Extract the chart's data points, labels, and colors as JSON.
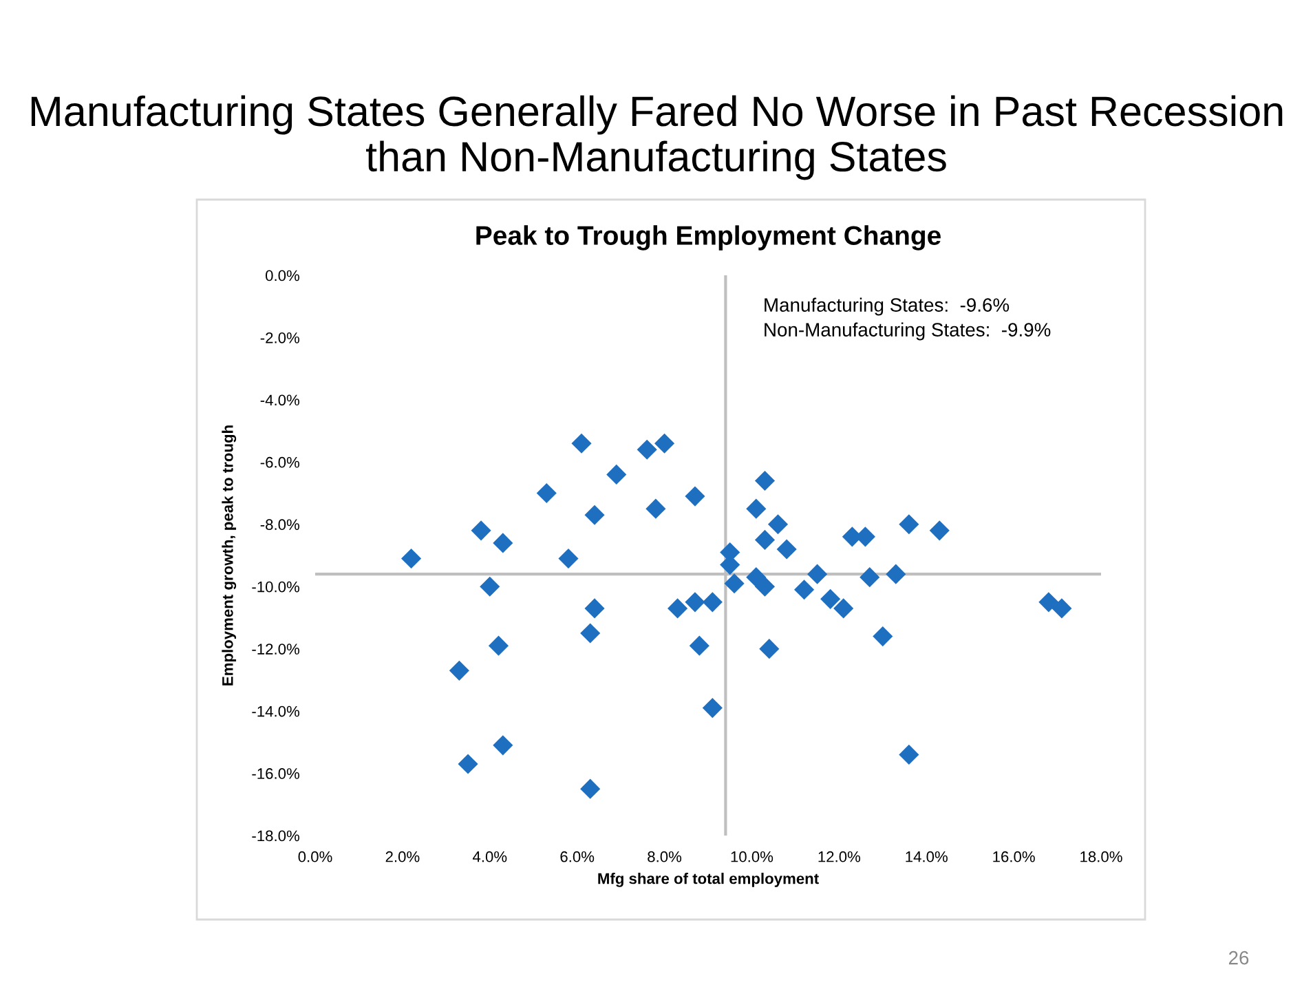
{
  "chart_data": {
    "type": "scatter",
    "title": "Peak to Trough Employment Change",
    "subtitle": "Manufacturing States Generally Fared No Worse in Past Recession than Non-Manufacturing States",
    "xlabel": "Mfg share of total employment",
    "ylabel": "Employment growth, peak to trough",
    "annotations": [
      "Manufacturing States:  -9.6%\nNon-Manufacturing States:  -9.9%",
      "26"
    ],
    "marker": "diamond",
    "grid": false,
    "legend": false,
    "xlim": [
      0,
      18
    ],
    "ylim": [
      -18,
      0
    ],
    "xticks": [
      {
        "value": 0,
        "label": "0.0%"
      },
      {
        "value": 2,
        "label": "2.0%"
      },
      {
        "value": 4,
        "label": "4.0%"
      },
      {
        "value": 6,
        "label": "6.0%"
      },
      {
        "value": 8,
        "label": "8.0%"
      },
      {
        "value": 10,
        "label": "10.0%"
      },
      {
        "value": 12,
        "label": "12.0%"
      },
      {
        "value": 14,
        "label": "14.0%"
      },
      {
        "value": 16,
        "label": "16.0%"
      },
      {
        "value": 18,
        "label": "18.0%"
      }
    ],
    "yticks": [
      {
        "value": 0,
        "label": "0.0%"
      },
      {
        "value": -2,
        "label": "-2.0%"
      },
      {
        "value": -4,
        "label": "-4.0%"
      },
      {
        "value": -6,
        "label": "-6.0%"
      },
      {
        "value": -8,
        "label": "-8.0%"
      },
      {
        "value": -10,
        "label": "-10.0%"
      },
      {
        "value": -12,
        "label": "-12.0%"
      },
      {
        "value": -14,
        "label": "-14.0%"
      },
      {
        "value": -16,
        "label": "-16.0%"
      },
      {
        "value": -18,
        "label": "-18.0%"
      }
    ],
    "ref_lines": [
      {
        "axis": "x",
        "value": 9.4,
        "color": "#bfbfbf"
      },
      {
        "axis": "y",
        "value": -9.6,
        "color": "#bfbfbf"
      }
    ],
    "series": [
      {
        "color": "#1f6fc1",
        "x": [
          2.2,
          3.8,
          4.3,
          4.0,
          4.2,
          3.3,
          3.5,
          4.3,
          5.3,
          6.1,
          6.4,
          5.8,
          6.9,
          7.6,
          8.0,
          7.8,
          8.7,
          6.4,
          6.3,
          6.3,
          8.3,
          8.7,
          9.1,
          8.8,
          9.1,
          9.5,
          9.5,
          9.6,
          10.3,
          10.1,
          10.3,
          10.6,
          10.8,
          10.1,
          10.3,
          10.4,
          11.2,
          11.5,
          11.8,
          12.1,
          12.3,
          12.6,
          12.7,
          13.0,
          13.3,
          13.6,
          14.3,
          13.6,
          16.8,
          17.1
        ],
        "values": [
          -9.1,
          -8.2,
          -8.6,
          -10.0,
          -11.9,
          -12.7,
          -15.7,
          -15.1,
          -7.0,
          -5.4,
          -7.7,
          -9.1,
          -6.4,
          -5.6,
          -5.4,
          -7.5,
          -7.1,
          -10.7,
          -11.5,
          -16.5,
          -10.7,
          -10.5,
          -10.5,
          -11.9,
          -13.9,
          -8.9,
          -9.3,
          -9.9,
          -6.6,
          -7.5,
          -8.5,
          -8.0,
          -8.8,
          -9.7,
          -10.0,
          -12.0,
          -10.1,
          -9.6,
          -10.4,
          -10.7,
          -8.4,
          -8.4,
          -9.7,
          -11.6,
          -9.6,
          -8.0,
          -8.2,
          -15.4,
          -10.5,
          -10.7
        ]
      }
    ]
  }
}
